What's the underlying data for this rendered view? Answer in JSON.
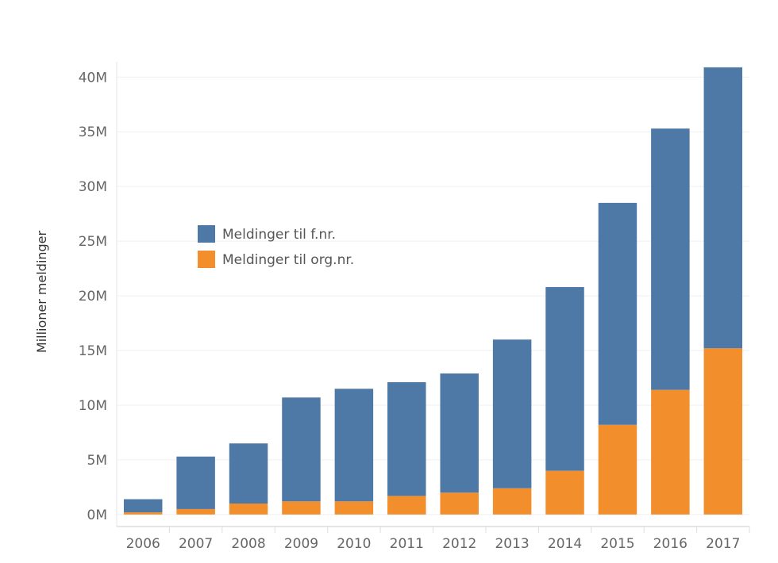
{
  "chart_data": {
    "type": "bar",
    "stacked": true,
    "title": "",
    "xlabel": "",
    "ylabel": "Millioner meldinger",
    "categories": [
      "2006",
      "2007",
      "2008",
      "2009",
      "2010",
      "2011",
      "2012",
      "2013",
      "2014",
      "2015",
      "2016",
      "2017"
    ],
    "series": [
      {
        "name": "Meldinger til org.nr.",
        "color": "#f28e2b",
        "values": [
          0.2,
          0.5,
          1.0,
          1.2,
          1.2,
          1.7,
          2.0,
          2.4,
          4.0,
          8.2,
          11.4,
          15.2
        ]
      },
      {
        "name": "Meldinger til f.nr.",
        "color": "#4e79a7",
        "values": [
          1.2,
          4.8,
          5.5,
          9.5,
          10.3,
          10.4,
          10.9,
          13.6,
          16.8,
          20.3,
          23.9,
          25.7
        ]
      }
    ],
    "ylim": [
      -1.1,
      41.4
    ],
    "yticks": [
      0,
      5,
      10,
      15,
      20,
      25,
      30,
      35,
      40
    ],
    "ytick_labels": [
      "0M",
      "5M",
      "10M",
      "15M",
      "20M",
      "25M",
      "30M",
      "35M",
      "40M"
    ],
    "legend": {
      "position": "upper-left",
      "entries": [
        {
          "label": "Meldinger til f.nr.",
          "color": "#4e79a7"
        },
        {
          "label": "Meldinger til org.nr.",
          "color": "#f28e2b"
        }
      ]
    },
    "grid": true
  }
}
